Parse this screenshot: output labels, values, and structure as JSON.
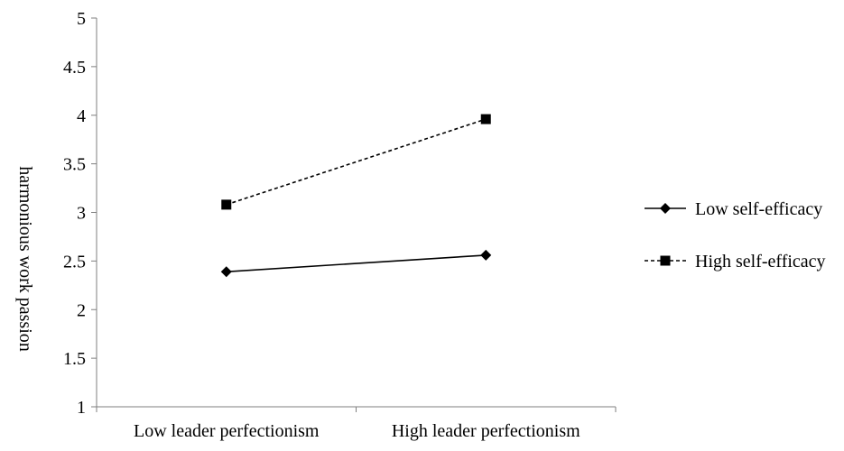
{
  "chart_data": {
    "type": "line",
    "title": "",
    "xlabel": "",
    "ylabel": "harmonious work passion",
    "categories": [
      "Low leader perfectionism",
      "High leader perfectionism"
    ],
    "ylim": [
      1,
      5
    ],
    "y_ticks": [
      "1",
      "1.5",
      "2",
      "2.5",
      "3",
      "3.5",
      "4",
      "4.5",
      "5"
    ],
    "grid": false,
    "legend_position": "right",
    "series": [
      {
        "name": "Low self-efficacy",
        "values": [
          2.39,
          2.56
        ],
        "marker": "diamond",
        "line_style": "solid",
        "color": "#000000"
      },
      {
        "name": "High self-efficacy",
        "values": [
          3.08,
          3.96
        ],
        "marker": "square",
        "line_style": "dashed",
        "color": "#000000"
      }
    ]
  }
}
